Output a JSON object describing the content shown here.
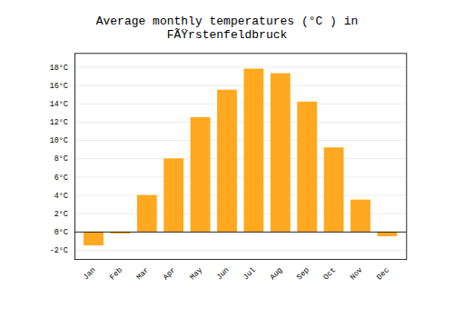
{
  "chart_data": {
    "type": "bar",
    "title": "Average monthly temperatures (°C ) in FÃŸrstenfeldbruck",
    "categories": [
      "Jan",
      "Feb",
      "Mar",
      "Apr",
      "May",
      "Jun",
      "Jul",
      "Aug",
      "Sep",
      "Oct",
      "Nov",
      "Dec"
    ],
    "values": [
      -1.5,
      -0.2,
      4.0,
      8.0,
      12.5,
      15.5,
      17.8,
      17.3,
      14.2,
      9.2,
      3.5,
      -0.5
    ],
    "color": "#FFA820",
    "ylim": [
      -3,
      19.5
    ],
    "yticks": [
      {
        "value": -2,
        "label": "-2°C"
      },
      {
        "value": 0,
        "label": "0°C"
      },
      {
        "value": 2,
        "label": "2°C"
      },
      {
        "value": 4,
        "label": "4°C"
      },
      {
        "value": 6,
        "label": "6°C"
      },
      {
        "value": 8,
        "label": "8°C"
      },
      {
        "value": 10,
        "label": "10°C"
      },
      {
        "value": 12,
        "label": "12°C"
      },
      {
        "value": 14,
        "label": "14°C"
      },
      {
        "value": 16,
        "label": "16°C"
      },
      {
        "value": 18,
        "label": "18°C"
      }
    ],
    "grid": true
  }
}
